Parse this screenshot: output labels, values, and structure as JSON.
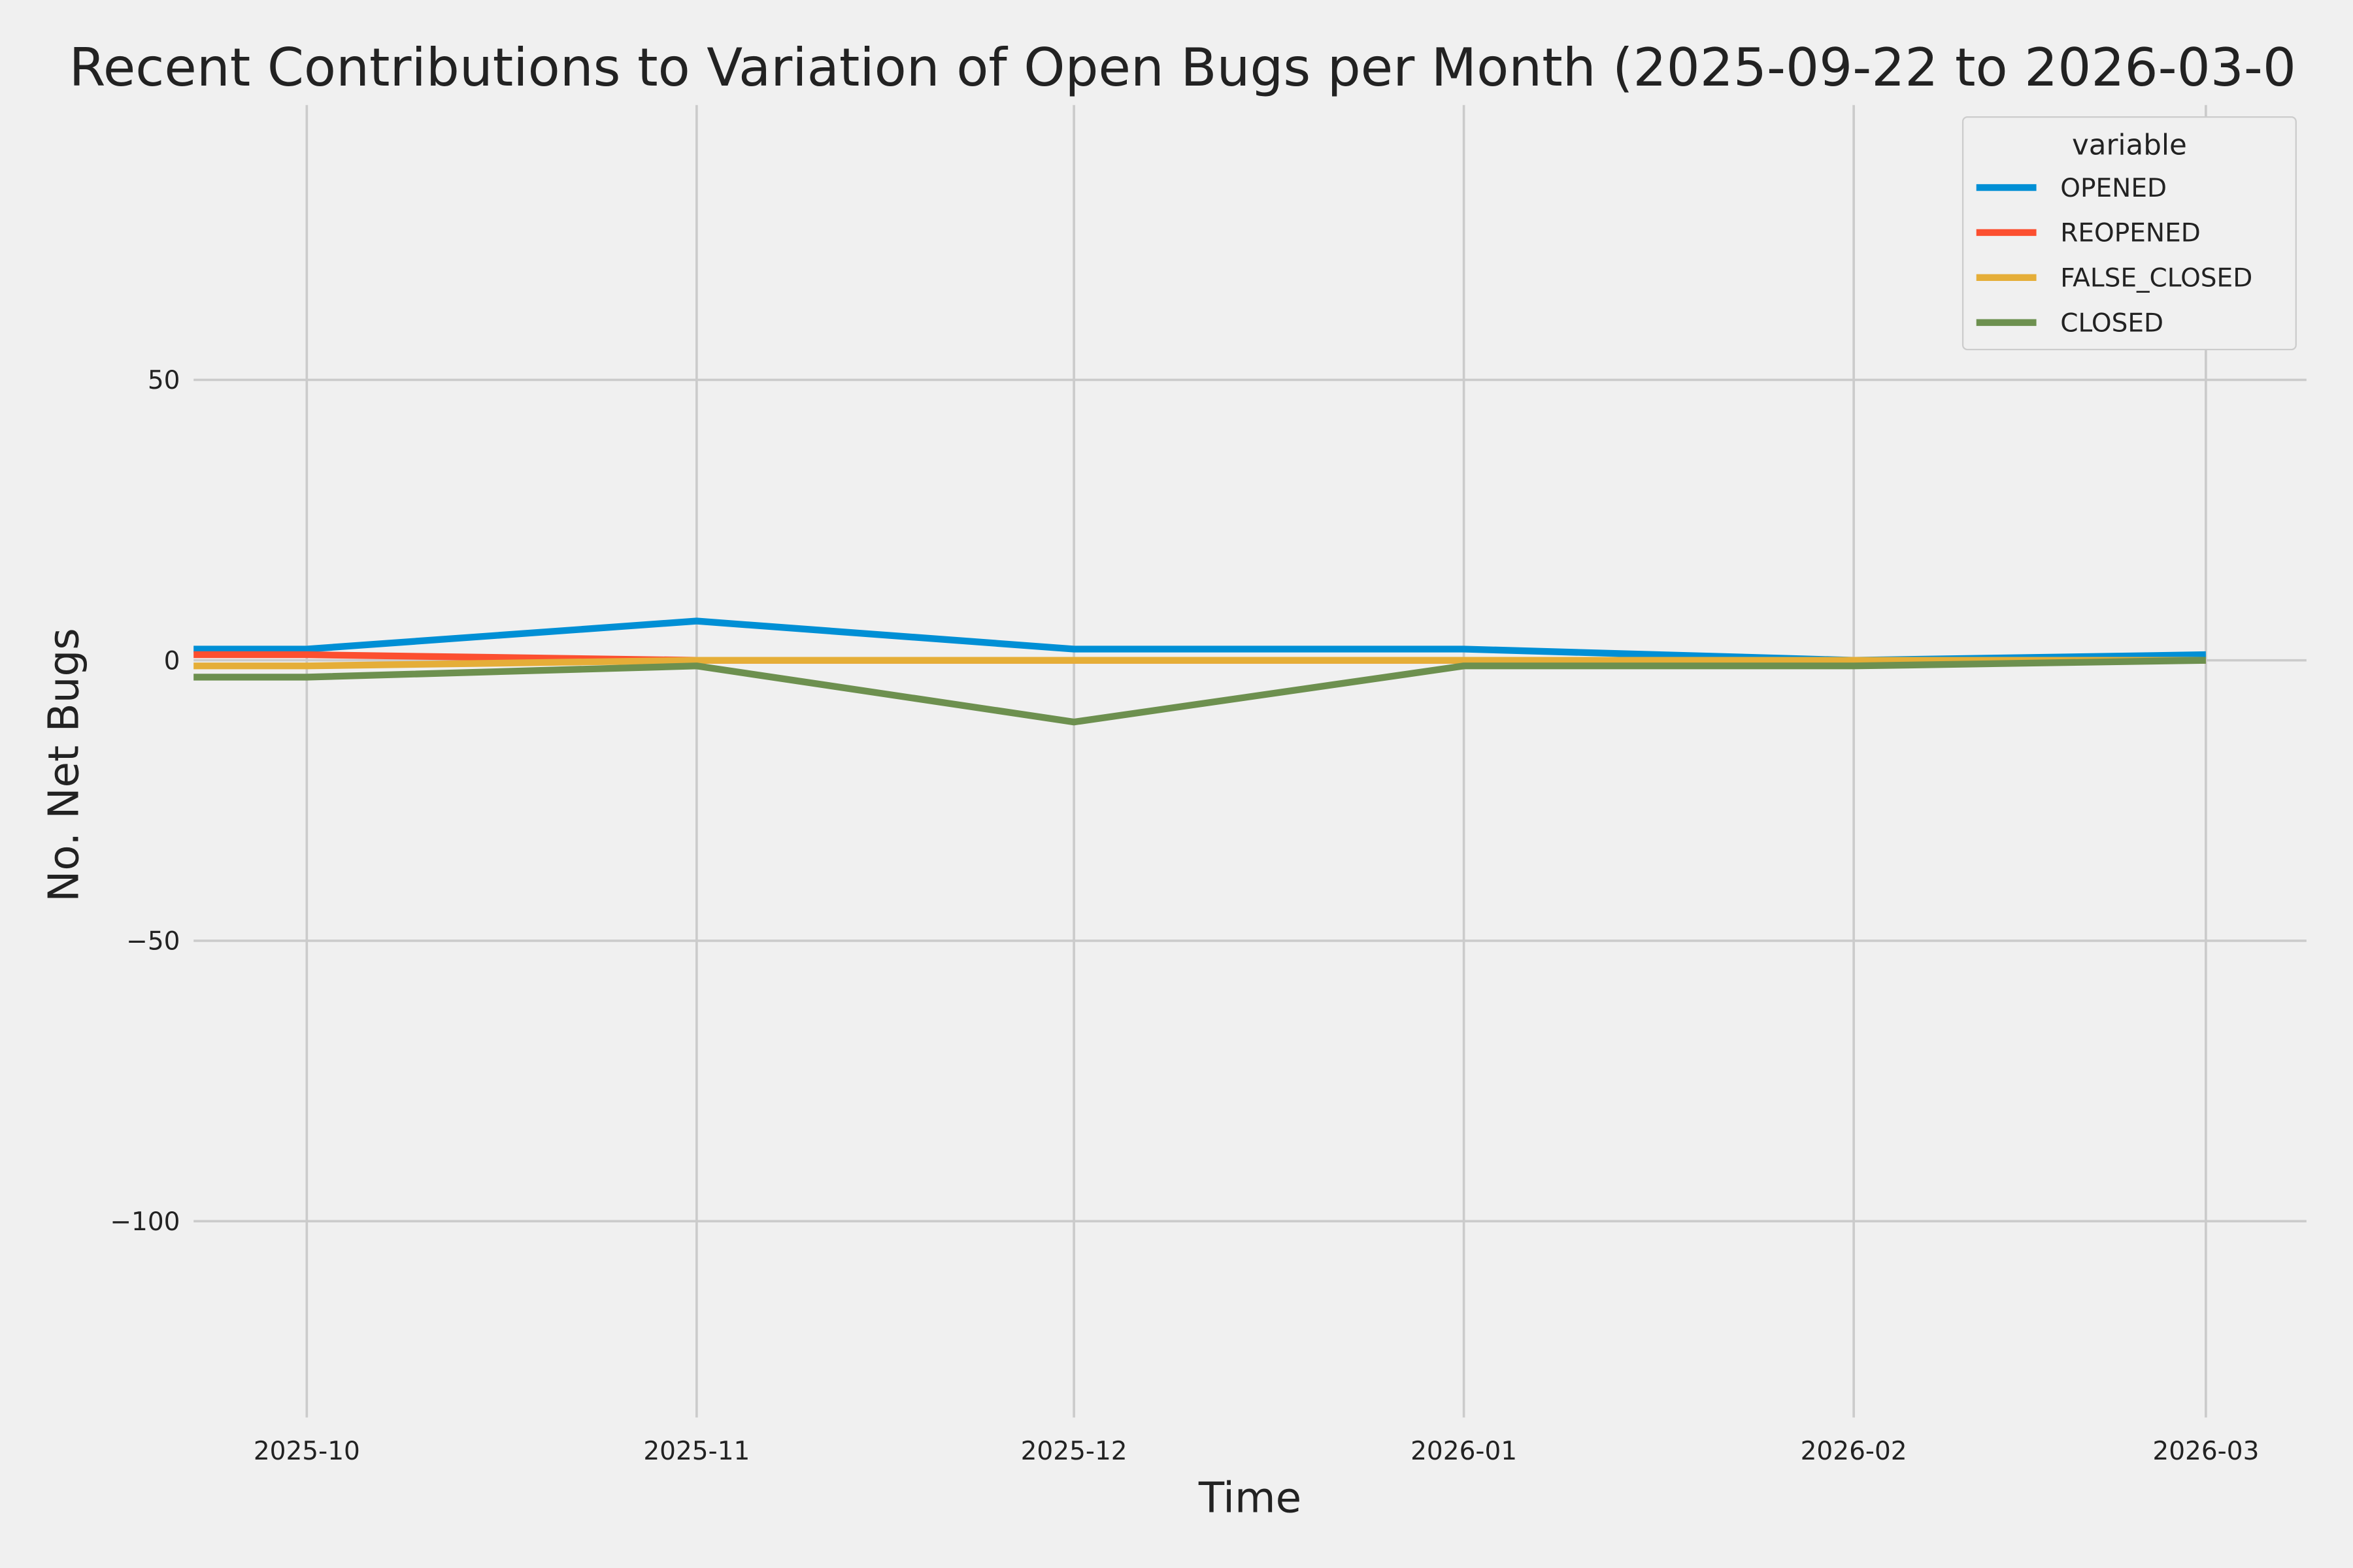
{
  "chart_data": {
    "type": "line",
    "title": "Recent Contributions to Variation of Open Bugs per Month (2025-09-22 to 2026-03-0",
    "x_label": "Time",
    "y_label": "No. Net Bugs",
    "x": [
      "2025-09-22",
      "2025-10",
      "2025-11",
      "2025-12",
      "2026-01",
      "2026-02",
      "2026-03"
    ],
    "series": [
      {
        "name": "OPENED",
        "color": "#008fd5",
        "values": [
          2,
          2,
          7,
          2,
          2,
          0,
          1
        ]
      },
      {
        "name": "REOPENED",
        "color": "#fc4f30",
        "values": [
          1,
          1,
          0,
          0,
          0,
          0,
          0
        ]
      },
      {
        "name": "FALSE_CLOSED",
        "color": "#e5ae38",
        "values": [
          -1,
          -1,
          0,
          0,
          0,
          0,
          0
        ]
      },
      {
        "name": "CLOSED",
        "color": "#6d904f",
        "values": [
          -3,
          -3,
          -1,
          -11,
          -1,
          -1,
          0
        ]
      }
    ],
    "xlim": [
      "2025-09-22",
      "2026-03-09"
    ],
    "xticks": [
      "2025-10",
      "2025-11",
      "2025-12",
      "2026-01",
      "2026-02",
      "2026-03"
    ],
    "ylim": [
      -135,
      99
    ],
    "yticks": [
      {
        "value": -100,
        "label": "−100"
      },
      {
        "value": -50,
        "label": "−50"
      },
      0,
      50
    ],
    "grid": true,
    "legend": {
      "title": "variable",
      "position": "upper right"
    }
  }
}
